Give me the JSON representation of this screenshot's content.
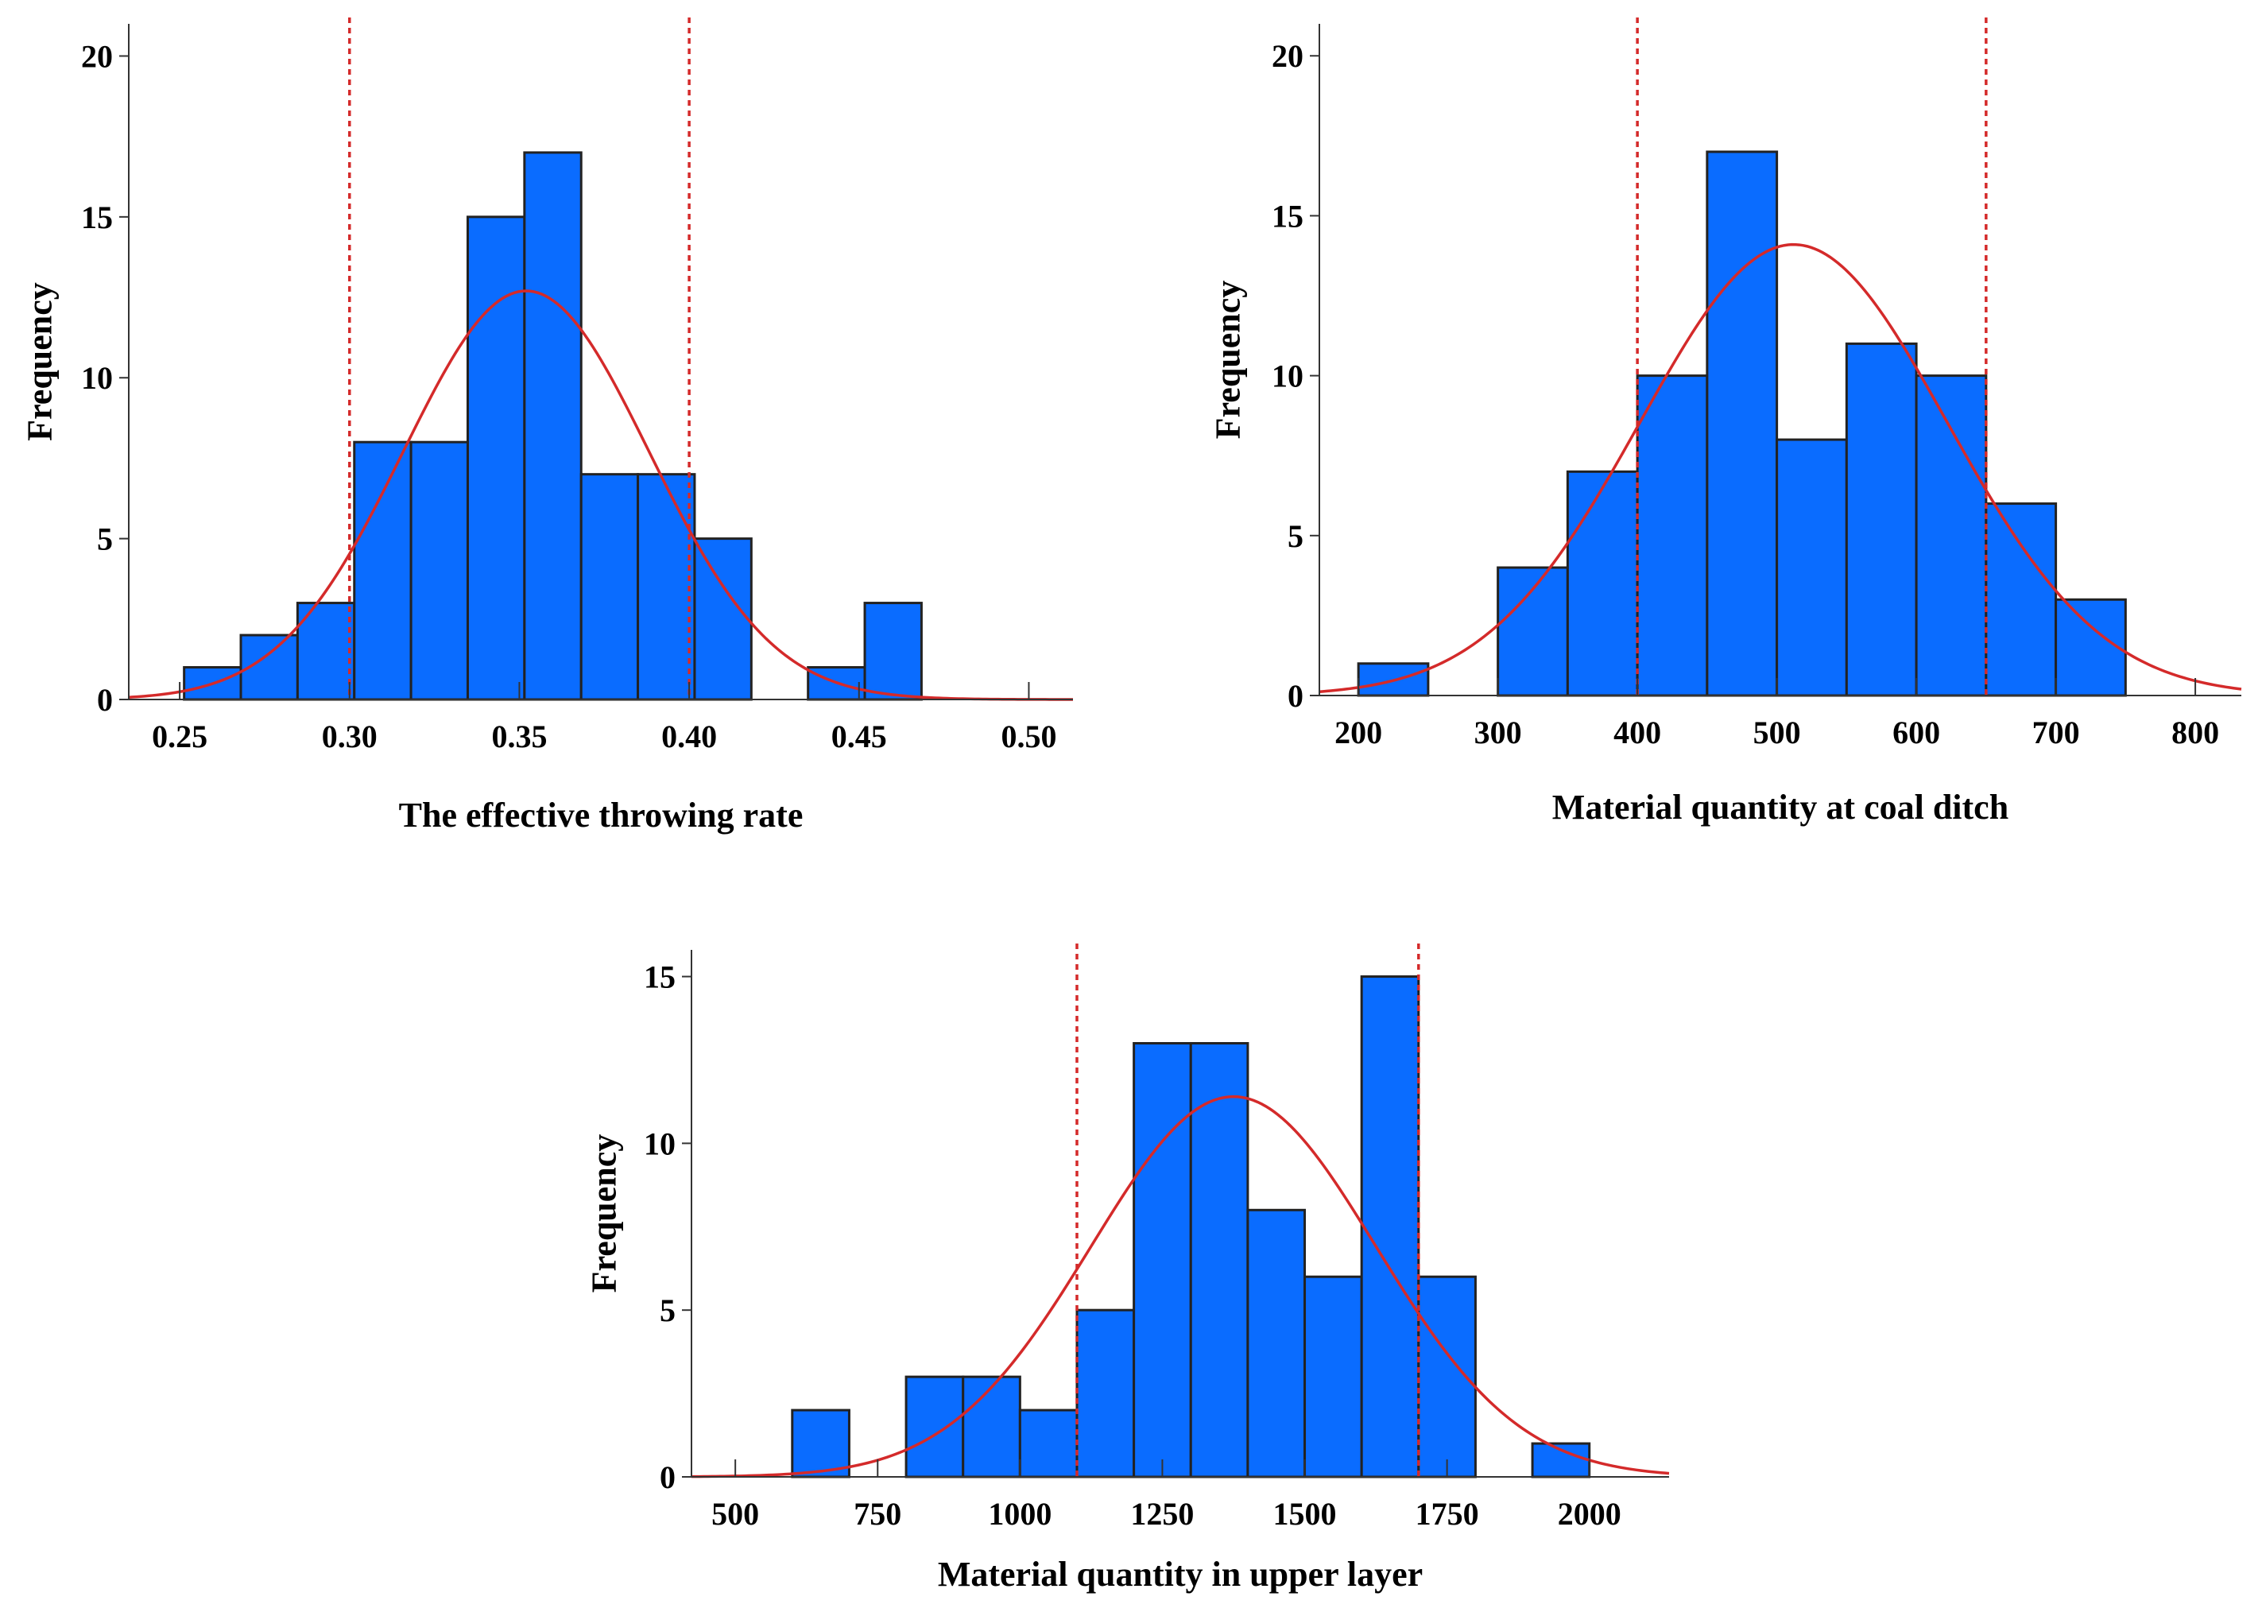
{
  "chart_data": [
    {
      "type": "bar",
      "id": "throwing-rate",
      "xlabel": "The effective throwing rate",
      "ylabel": "Frequency",
      "xlim": [
        0.235,
        0.513
      ],
      "ylim": [
        0,
        21
      ],
      "xticks": [
        0.25,
        0.3,
        0.35,
        0.4,
        0.45,
        0.5
      ],
      "xtick_labels": [
        "0.25",
        "0.30",
        "0.35",
        "0.40",
        "0.45",
        "0.50"
      ],
      "yticks": [
        0,
        5,
        10,
        15,
        20
      ],
      "ytick_labels": [
        "0",
        "5",
        "10",
        "15",
        "20"
      ],
      "bin_width": 0.0167,
      "bins": [
        {
          "start": 0.2513,
          "value": 1
        },
        {
          "start": 0.268,
          "value": 2
        },
        {
          "start": 0.2847,
          "value": 3
        },
        {
          "start": 0.3014,
          "value": 8
        },
        {
          "start": 0.3181,
          "value": 8
        },
        {
          "start": 0.3348,
          "value": 15
        },
        {
          "start": 0.3515,
          "value": 17
        },
        {
          "start": 0.3682,
          "value": 7
        },
        {
          "start": 0.3849,
          "value": 7
        },
        {
          "start": 0.4016,
          "value": 5
        },
        {
          "start": 0.435,
          "value": 1
        },
        {
          "start": 0.4517,
          "value": 3
        }
      ],
      "normal_curve": {
        "mean": 0.352,
        "sd": 0.0362,
        "peak": 12.7
      },
      "limits": [
        0.3,
        0.4
      ]
    },
    {
      "type": "bar",
      "id": "coal-ditch",
      "xlabel": "Material quantity at coal ditch",
      "ylabel": "Frequency",
      "xlim": [
        172,
        833
      ],
      "ylim": [
        0,
        21
      ],
      "xticks": [
        200,
        300,
        400,
        500,
        600,
        700,
        800
      ],
      "xtick_labels": [
        "200",
        "300",
        "400",
        "500",
        "600",
        "700",
        "800"
      ],
      "yticks": [
        0,
        5,
        10,
        15,
        20
      ],
      "ytick_labels": [
        "0",
        "5",
        "10",
        "15",
        "20"
      ],
      "bin_width": 50,
      "bins": [
        {
          "start": 200,
          "value": 1
        },
        {
          "start": 300,
          "value": 4
        },
        {
          "start": 350,
          "value": 7
        },
        {
          "start": 400,
          "value": 10
        },
        {
          "start": 450,
          "value": 17
        },
        {
          "start": 500,
          "value": 8
        },
        {
          "start": 550,
          "value": 11
        },
        {
          "start": 600,
          "value": 10
        },
        {
          "start": 650,
          "value": 6
        },
        {
          "start": 700,
          "value": 3
        }
      ],
      "normal_curve": {
        "mean": 512,
        "sd": 110,
        "peak": 14.1
      },
      "limits": [
        400,
        650
      ]
    },
    {
      "type": "bar",
      "id": "upper-layer",
      "xlabel": "Material quantity in upper layer",
      "ylabel": "Frequency",
      "xlim": [
        423,
        2140
      ],
      "ylim": [
        0,
        15.8
      ],
      "xticks": [
        500,
        750,
        1000,
        1250,
        1500,
        1750,
        2000
      ],
      "xtick_labels": [
        "500",
        "750",
        "1000",
        "1250",
        "1500",
        "1750",
        "2000"
      ],
      "yticks": [
        0,
        5,
        10,
        15
      ],
      "ytick_labels": [
        "0",
        "5",
        "10",
        "15"
      ],
      "bin_width": 100,
      "bins": [
        {
          "start": 600,
          "value": 2
        },
        {
          "start": 800,
          "value": 3
        },
        {
          "start": 900,
          "value": 3
        },
        {
          "start": 1000,
          "value": 2
        },
        {
          "start": 1100,
          "value": 5
        },
        {
          "start": 1200,
          "value": 13
        },
        {
          "start": 1300,
          "value": 13
        },
        {
          "start": 1400,
          "value": 8
        },
        {
          "start": 1500,
          "value": 6
        },
        {
          "start": 1600,
          "value": 15
        },
        {
          "start": 1700,
          "value": 6
        },
        {
          "start": 1900,
          "value": 1
        }
      ],
      "normal_curve": {
        "mean": 1375,
        "sd": 250,
        "peak": 11.4
      },
      "limits": [
        1100,
        1700
      ]
    }
  ]
}
